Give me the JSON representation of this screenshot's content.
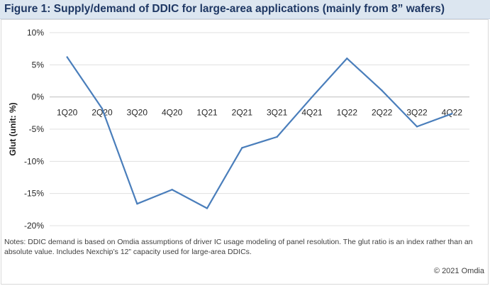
{
  "figure": {
    "title": "Figure 1: Supply/demand of DDIC for large-area applications (mainly from 8” wafers)",
    "notes": "Notes: DDIC demand is based on Omdia assumptions of driver IC usage modeling of panel resolution. The glut ratio is an index rather than an absolute value. Includes Nexchip’s 12” capacity used for large-area DDICs.",
    "copyright": "© 2021 Omdia"
  },
  "chart_data": {
    "type": "line",
    "title": "",
    "xlabel": "",
    "ylabel": "Glut (unit: %)",
    "categories": [
      "1Q20",
      "2Q20",
      "3Q20",
      "4Q20",
      "1Q21",
      "2Q21",
      "3Q21",
      "4Q21",
      "1Q22",
      "2Q22",
      "3Q22",
      "4Q22"
    ],
    "series": [
      {
        "name": "Glut",
        "values": [
          6.2,
          -1.8,
          -16.6,
          -14.4,
          -17.3,
          -7.9,
          -6.2,
          0.0,
          6.0,
          1.0,
          -4.6,
          -2.6
        ]
      }
    ],
    "ylim": [
      -20,
      10
    ],
    "yticks": [
      10,
      5,
      0,
      -5,
      -10,
      -15,
      -20
    ],
    "ytick_labels": [
      "10%",
      "5%",
      "0%",
      "-5%",
      "-10%",
      "-15%",
      "-20%"
    ],
    "grid": true,
    "line_color": "#4a7ebb"
  }
}
